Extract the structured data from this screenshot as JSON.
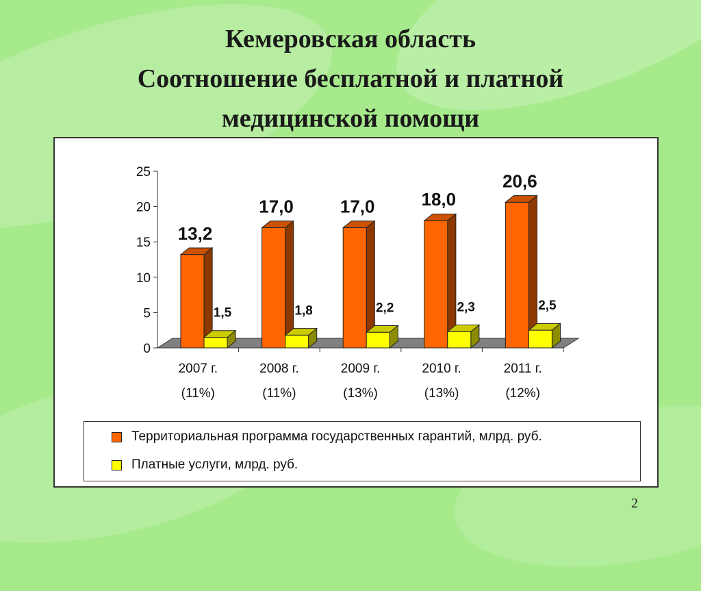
{
  "slide": {
    "title_lines": [
      "Кемеровская область",
      "Соотношение бесплатной и платной",
      "медицинской помощи"
    ],
    "page_number": "2"
  },
  "colors": {
    "background": "#a6ea8c",
    "series_1": "#ff6600",
    "series_2": "#ffff00"
  },
  "chart_data": {
    "type": "bar",
    "categories": [
      "2007 г.",
      "2008 г.",
      "2009 г.",
      "2010 г.",
      "2011 г."
    ],
    "category_sublabels": [
      "(11%)",
      "(11%)",
      "(13%)",
      "(13%)",
      "(12%)"
    ],
    "series": [
      {
        "name": "Территориальная программа государственных гарантий, млрд. руб.",
        "values": [
          13.2,
          17.0,
          17.0,
          18.0,
          20.6
        ],
        "labels": [
          "13,2",
          "17,0",
          "17,0",
          "18,0",
          "20,6"
        ]
      },
      {
        "name": "Платные услуги, млрд. руб.",
        "values": [
          1.5,
          1.8,
          2.2,
          2.3,
          2.5
        ],
        "labels": [
          "1,5",
          "1,8",
          "2,2",
          "2,3",
          "2,5"
        ]
      }
    ],
    "yticks": [
      "0",
      "5",
      "10",
      "15",
      "20",
      "25"
    ],
    "ylim": [
      0,
      25
    ],
    "grid": false,
    "legend_position": "bottom",
    "style": "3d-column"
  }
}
